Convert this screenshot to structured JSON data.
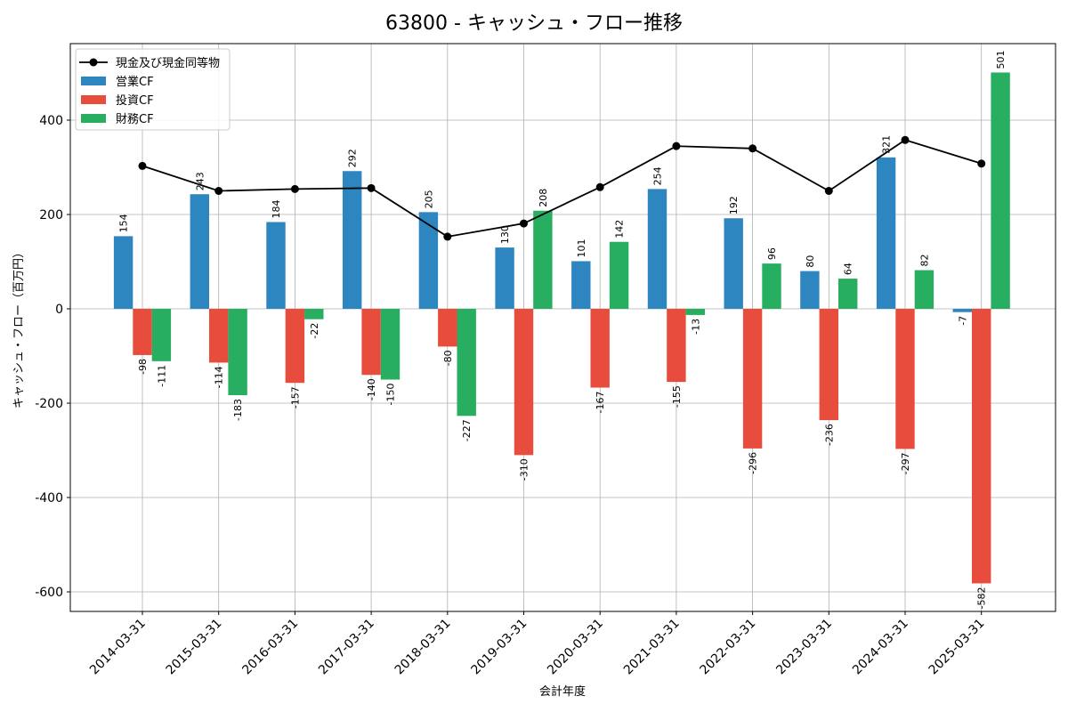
{
  "chart_data": {
    "type": "bar",
    "title": "63800 - キャッシュ・フロー推移",
    "xlabel": "会計年度",
    "ylabel": "キャッシュ・フロー（百万円）",
    "ylim": [
      -640,
      560
    ],
    "yticks": [
      400,
      200,
      0,
      -200,
      -400,
      -600
    ],
    "grid": true,
    "legend_position": "top-left",
    "categories": [
      "2014-03-31",
      "2015-03-31",
      "2016-03-31",
      "2017-03-31",
      "2018-03-31",
      "2019-03-31",
      "2020-03-31",
      "2021-03-31",
      "2022-03-31",
      "2023-03-31",
      "2024-03-31",
      "2025-03-31"
    ],
    "series": [
      {
        "name": "営業CF",
        "kind": "bar",
        "color": "#2e86c1",
        "values": [
          154,
          243,
          184,
          292,
          205,
          130,
          101,
          254,
          192,
          80,
          321,
          -7
        ]
      },
      {
        "name": "投資CF",
        "kind": "bar",
        "color": "#e74c3c",
        "values": [
          -98,
          -114,
          -157,
          -140,
          -80,
          -310,
          -167,
          -155,
          -296,
          -236,
          -297,
          -582
        ]
      },
      {
        "name": "財務CF",
        "kind": "bar",
        "color": "#27ae60",
        "values": [
          -111,
          -183,
          -22,
          -150,
          -227,
          208,
          142,
          -13,
          96,
          64,
          82,
          501
        ]
      },
      {
        "name": "現金及び現金同等物",
        "kind": "line",
        "color": "#000000",
        "values": [
          303,
          250,
          254,
          256,
          153,
          181,
          258,
          345,
          340,
          250,
          358,
          308
        ]
      }
    ]
  }
}
